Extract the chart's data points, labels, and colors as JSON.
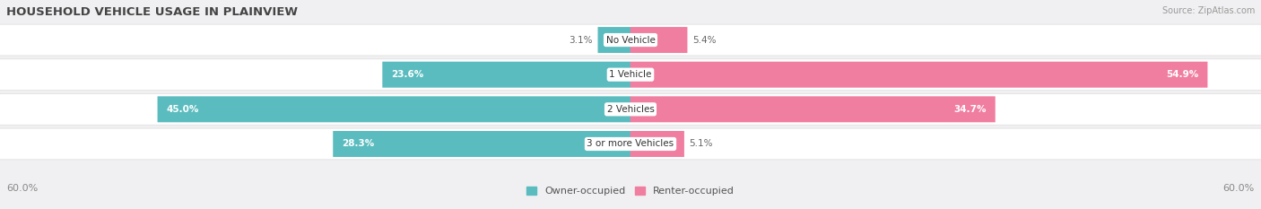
{
  "title": "HOUSEHOLD VEHICLE USAGE IN PLAINVIEW",
  "source": "Source: ZipAtlas.com",
  "categories": [
    "No Vehicle",
    "1 Vehicle",
    "2 Vehicles",
    "3 or more Vehicles"
  ],
  "owner_values": [
    3.1,
    23.6,
    45.0,
    28.3
  ],
  "renter_values": [
    5.4,
    54.9,
    34.7,
    5.1
  ],
  "owner_color": "#5bbcbf",
  "renter_color": "#f07ea0",
  "owner_label": "Owner-occupied",
  "renter_label": "Renter-occupied",
  "xlim": [
    -60,
    60
  ],
  "background_color": "#f0f0f2",
  "bar_bg_color": "#ffffff",
  "bar_height": 0.72,
  "title_fontsize": 9.5,
  "label_fontsize": 7.5,
  "legend_fontsize": 8,
  "axis_fontsize": 8
}
